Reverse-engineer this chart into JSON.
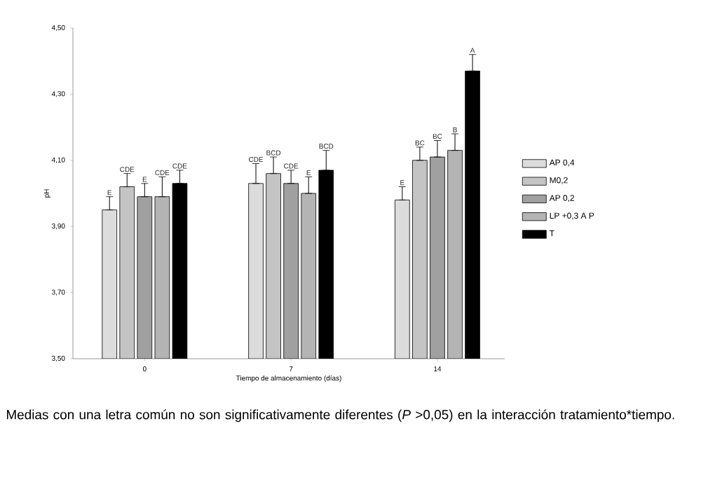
{
  "chart_data": {
    "type": "bar",
    "xlabel": "Tiempo de almacenamiento (días)",
    "ylabel": "pH",
    "categories": [
      "0",
      "7",
      "14"
    ],
    "series": [
      {
        "name": "AP 0,4",
        "color": "#dcdcdc",
        "values": [
          3.95,
          4.03,
          3.98
        ],
        "errors": [
          [
            3.95,
            3.99
          ],
          [
            4.03,
            4.09
          ],
          [
            3.98,
            4.02
          ]
        ],
        "value_labels": [
          "E",
          "CDE",
          "E"
        ]
      },
      {
        "name": "M0,2",
        "color": "#c4c4c4",
        "values": [
          4.02,
          4.06,
          4.1
        ],
        "errors": [
          [
            4.02,
            4.06
          ],
          [
            4.06,
            4.11
          ],
          [
            4.1,
            4.14
          ]
        ],
        "value_labels": [
          "CDE",
          "BCD",
          "BC"
        ]
      },
      {
        "name": "AP 0,2",
        "color": "#a0a0a0",
        "values": [
          3.99,
          4.03,
          4.11
        ],
        "errors": [
          [
            3.99,
            4.03
          ],
          [
            4.03,
            4.07
          ],
          [
            4.11,
            4.16
          ]
        ],
        "value_labels": [
          "E",
          "CDE",
          "BC"
        ]
      },
      {
        "name": "LP +0,3 A P",
        "color": "#b4b4b4",
        "values": [
          3.99,
          4.0,
          4.13
        ],
        "errors": [
          [
            3.99,
            4.05
          ],
          [
            4.0,
            4.05
          ],
          [
            4.13,
            4.18
          ]
        ],
        "value_labels": [
          "CDE",
          "E",
          "B"
        ]
      },
      {
        "name": "T",
        "color": "#000000",
        "values": [
          4.03,
          4.07,
          4.37
        ],
        "errors": [
          [
            4.03,
            4.07
          ],
          [
            4.07,
            4.13
          ],
          [
            4.37,
            4.42
          ]
        ],
        "value_labels": [
          "CDE",
          "BCD",
          "A"
        ]
      }
    ],
    "ylim": [
      3.5,
      4.5
    ],
    "yticks": [
      {
        "value": 3.5,
        "label": "3,50"
      },
      {
        "value": 3.7,
        "label": "3,70"
      },
      {
        "value": 3.9,
        "label": "3,90"
      },
      {
        "value": 4.1,
        "label": "4,10"
      },
      {
        "value": 4.3,
        "label": "4,30"
      },
      {
        "value": 4.5,
        "label": "4,50"
      }
    ],
    "legend": "right",
    "grid": false,
    "annotations": [
      "Medias con una letra común no son significativamente diferentes (*P* >0,05) en la interacción tratamiento*tiempo."
    ]
  }
}
